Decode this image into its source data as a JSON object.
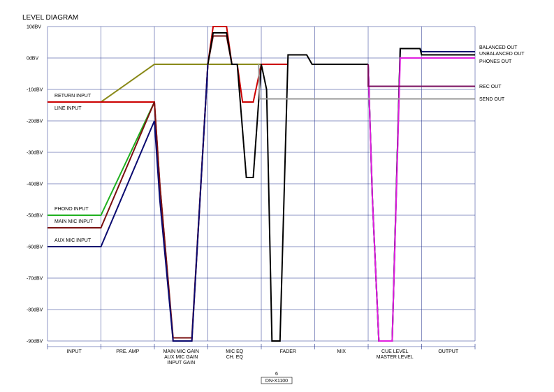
{
  "chart_data": {
    "type": "line",
    "title": "LEVEL DIAGRAM",
    "y_unit": "dBV",
    "ylim": [
      -90,
      10
    ],
    "y_ticks": [
      10,
      0,
      -10,
      -20,
      -30,
      -40,
      -50,
      -60,
      -70,
      -80,
      -90
    ],
    "y_tick_labels": [
      "10dBV",
      "0dBV",
      "-10dBV",
      "-20dBV",
      "-30dBV",
      "-40dBV",
      "-50dBV",
      "-60dBV",
      "-70dBV",
      "-80dBV",
      "-90dBV"
    ],
    "grid": true,
    "stages": [
      {
        "lines": [
          "INPUT"
        ],
        "colors": [
          "#000000"
        ]
      },
      {
        "lines": [
          "PRE. AMP"
        ],
        "colors": [
          "#000000"
        ]
      },
      {
        "lines": [
          "MAIN MIC GAIN",
          "AUX MIC GAIN",
          "INPUT GAIN"
        ],
        "colors": [
          "#b00000",
          "#000000",
          "#000000"
        ]
      },
      {
        "lines": [
          "MIC EQ",
          "CH. EQ"
        ],
        "colors": [
          "#b00000",
          "#000000"
        ]
      },
      {
        "lines": [
          "FADER"
        ],
        "colors": [
          "#000000"
        ]
      },
      {
        "lines": [
          "MIX"
        ],
        "colors": [
          "#000000"
        ]
      },
      {
        "lines": [
          "CUE LEVEL",
          "MASTER LEVEL"
        ],
        "colors": [
          "#e020e0",
          "#000000"
        ]
      },
      {
        "lines": [
          "OUTPUT"
        ],
        "colors": [
          "#000000"
        ]
      }
    ],
    "series": [
      {
        "name": "RETURN INPUT",
        "color": "#8a8a1a",
        "points": [
          [
            0,
            -14
          ],
          [
            1,
            -14
          ],
          [
            2,
            -2
          ],
          [
            3.2,
            -2
          ],
          [
            4,
            -2
          ]
        ]
      },
      {
        "name": "LINE INPUT",
        "color": "#cc0000",
        "points": [
          [
            0,
            -14
          ],
          [
            2,
            -14
          ],
          [
            2.1,
            -40
          ],
          [
            2.35,
            -90
          ],
          [
            2.7,
            -90
          ],
          [
            3,
            -2
          ],
          [
            3.1,
            10
          ],
          [
            3.35,
            10
          ],
          [
            3.45,
            -2
          ],
          [
            3.55,
            -2
          ],
          [
            3.65,
            -14
          ],
          [
            3.85,
            -14
          ],
          [
            4,
            -2
          ],
          [
            4.5,
            -2
          ]
        ]
      },
      {
        "name": "PHONO INPUT",
        "color": "#1fb01f",
        "points": [
          [
            0,
            -50
          ],
          [
            1,
            -50
          ],
          [
            2,
            -14
          ]
        ]
      },
      {
        "name": "MAIN MIC INPUT",
        "color": "#7a1010",
        "points": [
          [
            0,
            -54
          ],
          [
            1,
            -54
          ],
          [
            2,
            -14
          ],
          [
            2.1,
            -40
          ],
          [
            2.35,
            -89
          ],
          [
            2.7,
            -89
          ],
          [
            3,
            -2
          ],
          [
            3.1,
            7
          ],
          [
            3.35,
            7
          ],
          [
            3.45,
            -2
          ]
        ]
      },
      {
        "name": "AUX MIC INPUT",
        "color": "#0a0a70",
        "points": [
          [
            0,
            -60
          ],
          [
            1,
            -60
          ],
          [
            2,
            -20
          ],
          [
            2.1,
            -45
          ],
          [
            2.35,
            -90
          ],
          [
            2.7,
            -90
          ],
          [
            3,
            -2
          ]
        ]
      },
      {
        "name": "CH",
        "color": "#000000",
        "points": [
          [
            3,
            -2
          ],
          [
            3.1,
            8
          ],
          [
            3.35,
            8
          ],
          [
            3.45,
            -2
          ],
          [
            3.55,
            -2
          ],
          [
            3.72,
            -38
          ],
          [
            3.85,
            -38
          ],
          [
            4,
            -2
          ],
          [
            4.1,
            -10
          ],
          [
            4.2,
            -90
          ],
          [
            4.35,
            -90
          ],
          [
            4.5,
            1
          ],
          [
            4.85,
            1
          ],
          [
            4.95,
            -2
          ],
          [
            5.5,
            -2
          ],
          [
            6,
            -2
          ]
        ]
      },
      {
        "name": "BALANCED OUT",
        "color": "#0a0a70",
        "points": [
          [
            6,
            -2
          ],
          [
            6.08,
            -45
          ],
          [
            6.2,
            -90
          ],
          [
            6.45,
            -90
          ],
          [
            6.6,
            3
          ],
          [
            6.97,
            3
          ],
          [
            7,
            2
          ],
          [
            8,
            2
          ]
        ]
      },
      {
        "name": "UNBALANCED OUT",
        "color": "#000000",
        "points": [
          [
            6,
            -2
          ],
          [
            6.08,
            -45
          ],
          [
            6.2,
            -90
          ],
          [
            6.45,
            -90
          ],
          [
            6.6,
            3
          ],
          [
            6.97,
            3
          ],
          [
            7,
            1
          ],
          [
            8,
            1
          ]
        ]
      },
      {
        "name": "PHONES OUT",
        "color": "#e020e0",
        "points": [
          [
            6,
            -2
          ],
          [
            6.08,
            -45
          ],
          [
            6.2,
            -90
          ],
          [
            6.45,
            -90
          ],
          [
            6.6,
            0
          ],
          [
            8,
            0
          ]
        ]
      },
      {
        "name": "REC OUT",
        "color": "#7a1060",
        "points": [
          [
            6,
            -2
          ],
          [
            6,
            -9
          ],
          [
            8,
            -9
          ]
        ]
      },
      {
        "name": "SEND OUT",
        "color": "#9a9a9a",
        "points": [
          [
            3.95,
            -2
          ],
          [
            3.97,
            -13
          ],
          [
            8,
            -13
          ]
        ]
      }
    ],
    "input_labels": [
      {
        "text": "RETURN INPUT",
        "y": -12
      },
      {
        "text": "LINE INPUT",
        "y": -16
      },
      {
        "text": "PHONO INPUT",
        "y": -48
      },
      {
        "text": "MAIN MIC INPUT",
        "y": -52
      },
      {
        "text": "AUX MIC INPUT",
        "y": -58
      }
    ],
    "output_labels": [
      {
        "text": "BALANCED OUT",
        "y": 3.5
      },
      {
        "text": "UNBALANCED OUT",
        "y": 1.5
      },
      {
        "text": "PHONES OUT",
        "y": -1
      },
      {
        "text": "REC OUT",
        "y": -9
      },
      {
        "text": "SEND OUT",
        "y": -13
      }
    ]
  },
  "footer": {
    "page_number": "6",
    "model": "DN-X1100"
  }
}
